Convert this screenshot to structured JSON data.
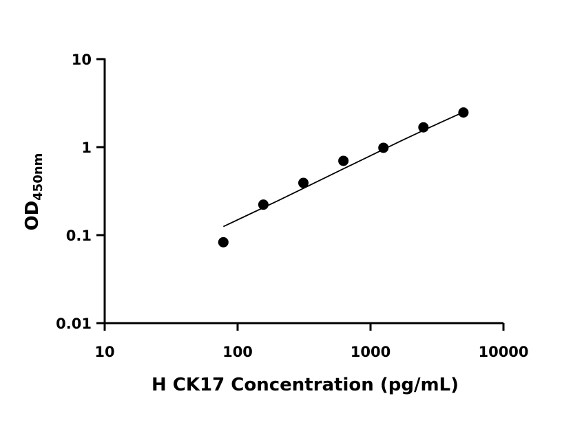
{
  "chart_data": {
    "type": "scatter",
    "title": "",
    "xlabel": "H CK17 Concentration (pg/mL)",
    "ylabel": {
      "main": "OD",
      "subscript": "450nm"
    },
    "x_scale": "log",
    "y_scale": "log",
    "xlim": [
      10,
      10000
    ],
    "ylim": [
      0.01,
      10
    ],
    "x_ticks": [
      10,
      100,
      1000,
      10000
    ],
    "x_tick_labels": [
      "10",
      "100",
      "1000",
      "10000"
    ],
    "y_ticks": [
      0.01,
      0.1,
      1,
      10
    ],
    "y_tick_labels": [
      "0.01",
      "0.1",
      "1",
      "10"
    ],
    "grid": false,
    "legend": false,
    "marker_color": "#000000",
    "series": [
      {
        "x": [
          78.125,
          156.25,
          312.5,
          625,
          1250,
          2500,
          5000
        ],
        "y": [
          0.083,
          0.222,
          0.392,
          0.698,
          0.983,
          1.678,
          2.475
        ]
      }
    ],
    "fit_curve": {
      "x": [
        78.125,
        120,
        200,
        350,
        600,
        1000,
        1700,
        2800,
        5000
      ],
      "y": [
        0.125,
        0.17,
        0.245,
        0.37,
        0.55,
        0.8,
        1.18,
        1.68,
        2.5
      ]
    }
  }
}
